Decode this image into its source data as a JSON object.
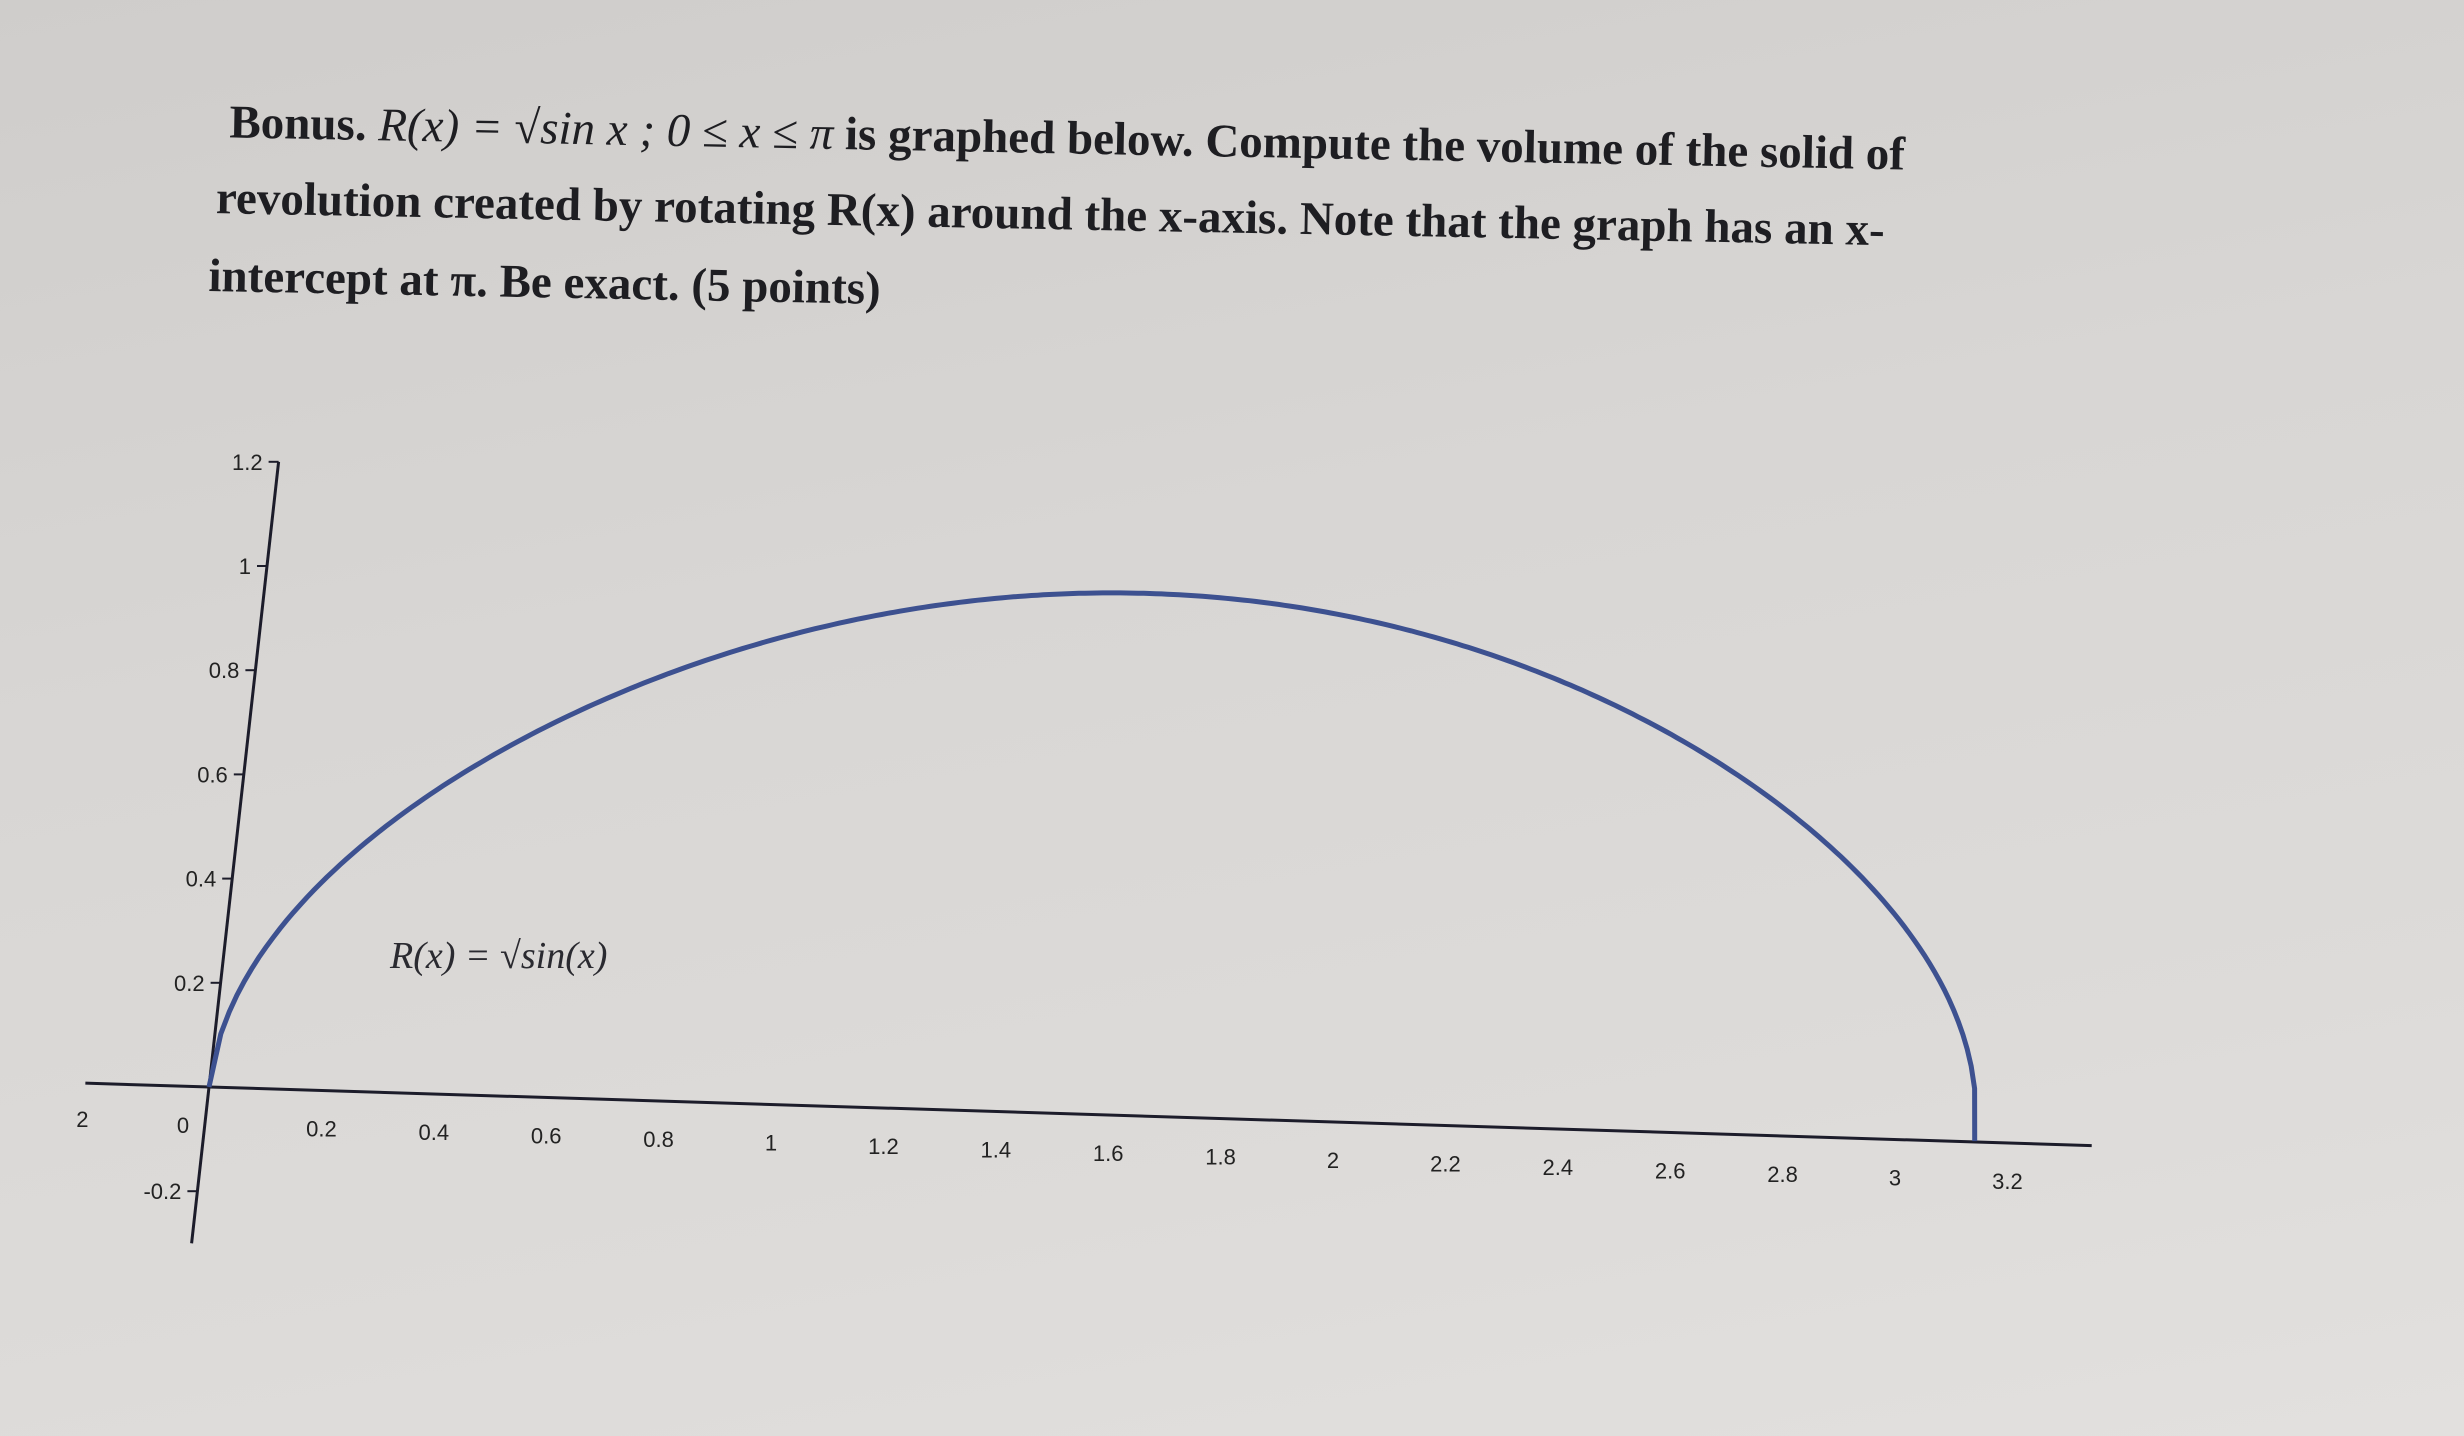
{
  "problem": {
    "label": "Bonus.",
    "formula": "R(x) = √sin x ; 0 ≤ x ≤ π",
    "line1_rest": "is graphed below. Compute the volume of the solid of",
    "line2": "revolution created by rotating R(x) around the x-axis. Note that the graph has an x-",
    "line3": "intercept at π. Be exact. (5 points)"
  },
  "chart_data": {
    "type": "line",
    "function": "sqrt(sin(x))",
    "domain": [
      0,
      3.14159
    ],
    "annotation": "R(x) = √sin(x)",
    "x_ticks": [
      "0.2",
      "0.4",
      "0.6",
      "0.8",
      "1",
      "1.2",
      "1.4",
      "1.6",
      "1.8",
      "2",
      "2.2",
      "2.4",
      "2.6",
      "2.8",
      "3",
      "3.2"
    ],
    "x_tick_values": [
      0.2,
      0.4,
      0.6,
      0.8,
      1,
      1.2,
      1.4,
      1.6,
      1.8,
      2,
      2.2,
      2.4,
      2.6,
      2.8,
      3,
      3.2
    ],
    "origin_label": "0",
    "left_cut_label": "2",
    "y_ticks": [
      "-0.2",
      "0.2",
      "0.4",
      "0.6",
      "0.8",
      "1",
      "1.2"
    ],
    "y_tick_values": [
      -0.2,
      0.2,
      0.4,
      0.6,
      0.8,
      1,
      1.2
    ],
    "xlim": [
      -0.22,
      3.35
    ],
    "ylim": [
      -0.3,
      1.2
    ],
    "grid": false,
    "line_color": "#3d5190"
  }
}
